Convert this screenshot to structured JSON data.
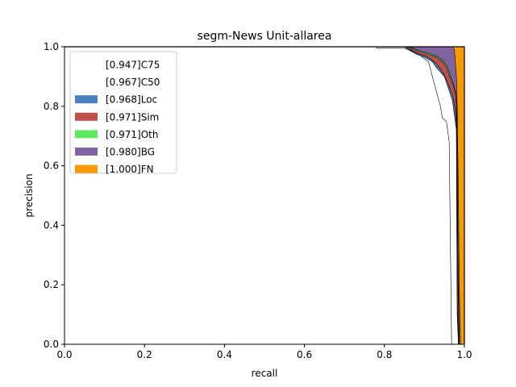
{
  "chart_data": {
    "type": "area",
    "title": "segm-News Unit-allarea",
    "xlabel": "recall",
    "ylabel": "precision",
    "xlim": [
      0,
      1
    ],
    "ylim": [
      0,
      1
    ],
    "xticks": [
      "0.0",
      "0.2",
      "0.4",
      "0.6",
      "0.8",
      "1.0"
    ],
    "yticks": [
      "0.0",
      "0.2",
      "0.4",
      "0.6",
      "0.8",
      "1.0"
    ],
    "grid": false,
    "legend_position": "top-left",
    "series": [
      {
        "name": "[0.947]C75",
        "color": "#ffffff",
        "points": [
          [
            0,
            1.0
          ],
          [
            0.78,
            1.0
          ],
          [
            0.78,
            0.995
          ],
          [
            0.85,
            0.995
          ],
          [
            0.87,
            0.985
          ],
          [
            0.89,
            0.97
          ],
          [
            0.91,
            0.95
          ],
          [
            0.92,
            0.9
          ],
          [
            0.93,
            0.85
          ],
          [
            0.94,
            0.8
          ],
          [
            0.945,
            0.76
          ],
          [
            0.955,
            0.75
          ],
          [
            0.962,
            0.68
          ],
          [
            0.968,
            0.0
          ]
        ]
      },
      {
        "name": "[0.967]C50",
        "color": "#ffffff",
        "points": [
          [
            0,
            1.0
          ],
          [
            0.85,
            1.0
          ],
          [
            0.86,
            0.99
          ],
          [
            0.88,
            0.975
          ],
          [
            0.9,
            0.965
          ],
          [
            0.92,
            0.95
          ],
          [
            0.93,
            0.93
          ],
          [
            0.95,
            0.9
          ],
          [
            0.96,
            0.86
          ],
          [
            0.97,
            0.82
          ],
          [
            0.975,
            0.77
          ],
          [
            0.98,
            0.72
          ],
          [
            0.982,
            0.1
          ],
          [
            0.985,
            0.0
          ]
        ]
      },
      {
        "name": "[0.968]Loc",
        "color": "#4c7fbf",
        "points": [
          [
            0,
            1.0
          ],
          [
            0.855,
            1.0
          ],
          [
            0.865,
            0.99
          ],
          [
            0.885,
            0.977
          ],
          [
            0.905,
            0.968
          ],
          [
            0.92,
            0.955
          ],
          [
            0.932,
            0.94
          ],
          [
            0.948,
            0.91
          ],
          [
            0.958,
            0.88
          ],
          [
            0.97,
            0.84
          ],
          [
            0.976,
            0.8
          ],
          [
            0.98,
            0.745
          ],
          [
            0.982,
            0.15
          ],
          [
            0.985,
            0.0
          ]
        ]
      },
      {
        "name": "[0.971]Sim",
        "color": "#c0504d",
        "points": [
          [
            0,
            1.0
          ],
          [
            0.86,
            1.0
          ],
          [
            0.87,
            0.993
          ],
          [
            0.89,
            0.982
          ],
          [
            0.91,
            0.975
          ],
          [
            0.93,
            0.965
          ],
          [
            0.945,
            0.95
          ],
          [
            0.955,
            0.93
          ],
          [
            0.963,
            0.9
          ],
          [
            0.972,
            0.87
          ],
          [
            0.978,
            0.84
          ],
          [
            0.98,
            0.8
          ],
          [
            0.983,
            0.3
          ],
          [
            0.986,
            0.0
          ]
        ]
      },
      {
        "name": "[0.971]Oth",
        "color": "#5fe85f",
        "points": [
          [
            0,
            1.0
          ],
          [
            0.862,
            1.0
          ],
          [
            0.872,
            0.995
          ],
          [
            0.892,
            0.985
          ],
          [
            0.912,
            0.978
          ],
          [
            0.932,
            0.968
          ],
          [
            0.947,
            0.953
          ],
          [
            0.957,
            0.933
          ],
          [
            0.965,
            0.903
          ],
          [
            0.973,
            0.873
          ],
          [
            0.978,
            0.845
          ],
          [
            0.981,
            0.805
          ],
          [
            0.984,
            0.3
          ],
          [
            0.987,
            0.0
          ]
        ]
      },
      {
        "name": "[0.980]BG",
        "color": "#8064a2",
        "points": [
          [
            0,
            1.0
          ],
          [
            0.97,
            1.0
          ],
          [
            0.975,
            0.99
          ],
          [
            0.98,
            0.9
          ],
          [
            0.982,
            0.8
          ],
          [
            0.985,
            0.5
          ],
          [
            0.987,
            0.2
          ],
          [
            0.99,
            0.0
          ]
        ]
      },
      {
        "name": "[1.000]FN",
        "color": "#f79a00",
        "points": [
          [
            0,
            1.0
          ],
          [
            1.0,
            1.0
          ],
          [
            1.0,
            0.0
          ]
        ]
      }
    ]
  }
}
